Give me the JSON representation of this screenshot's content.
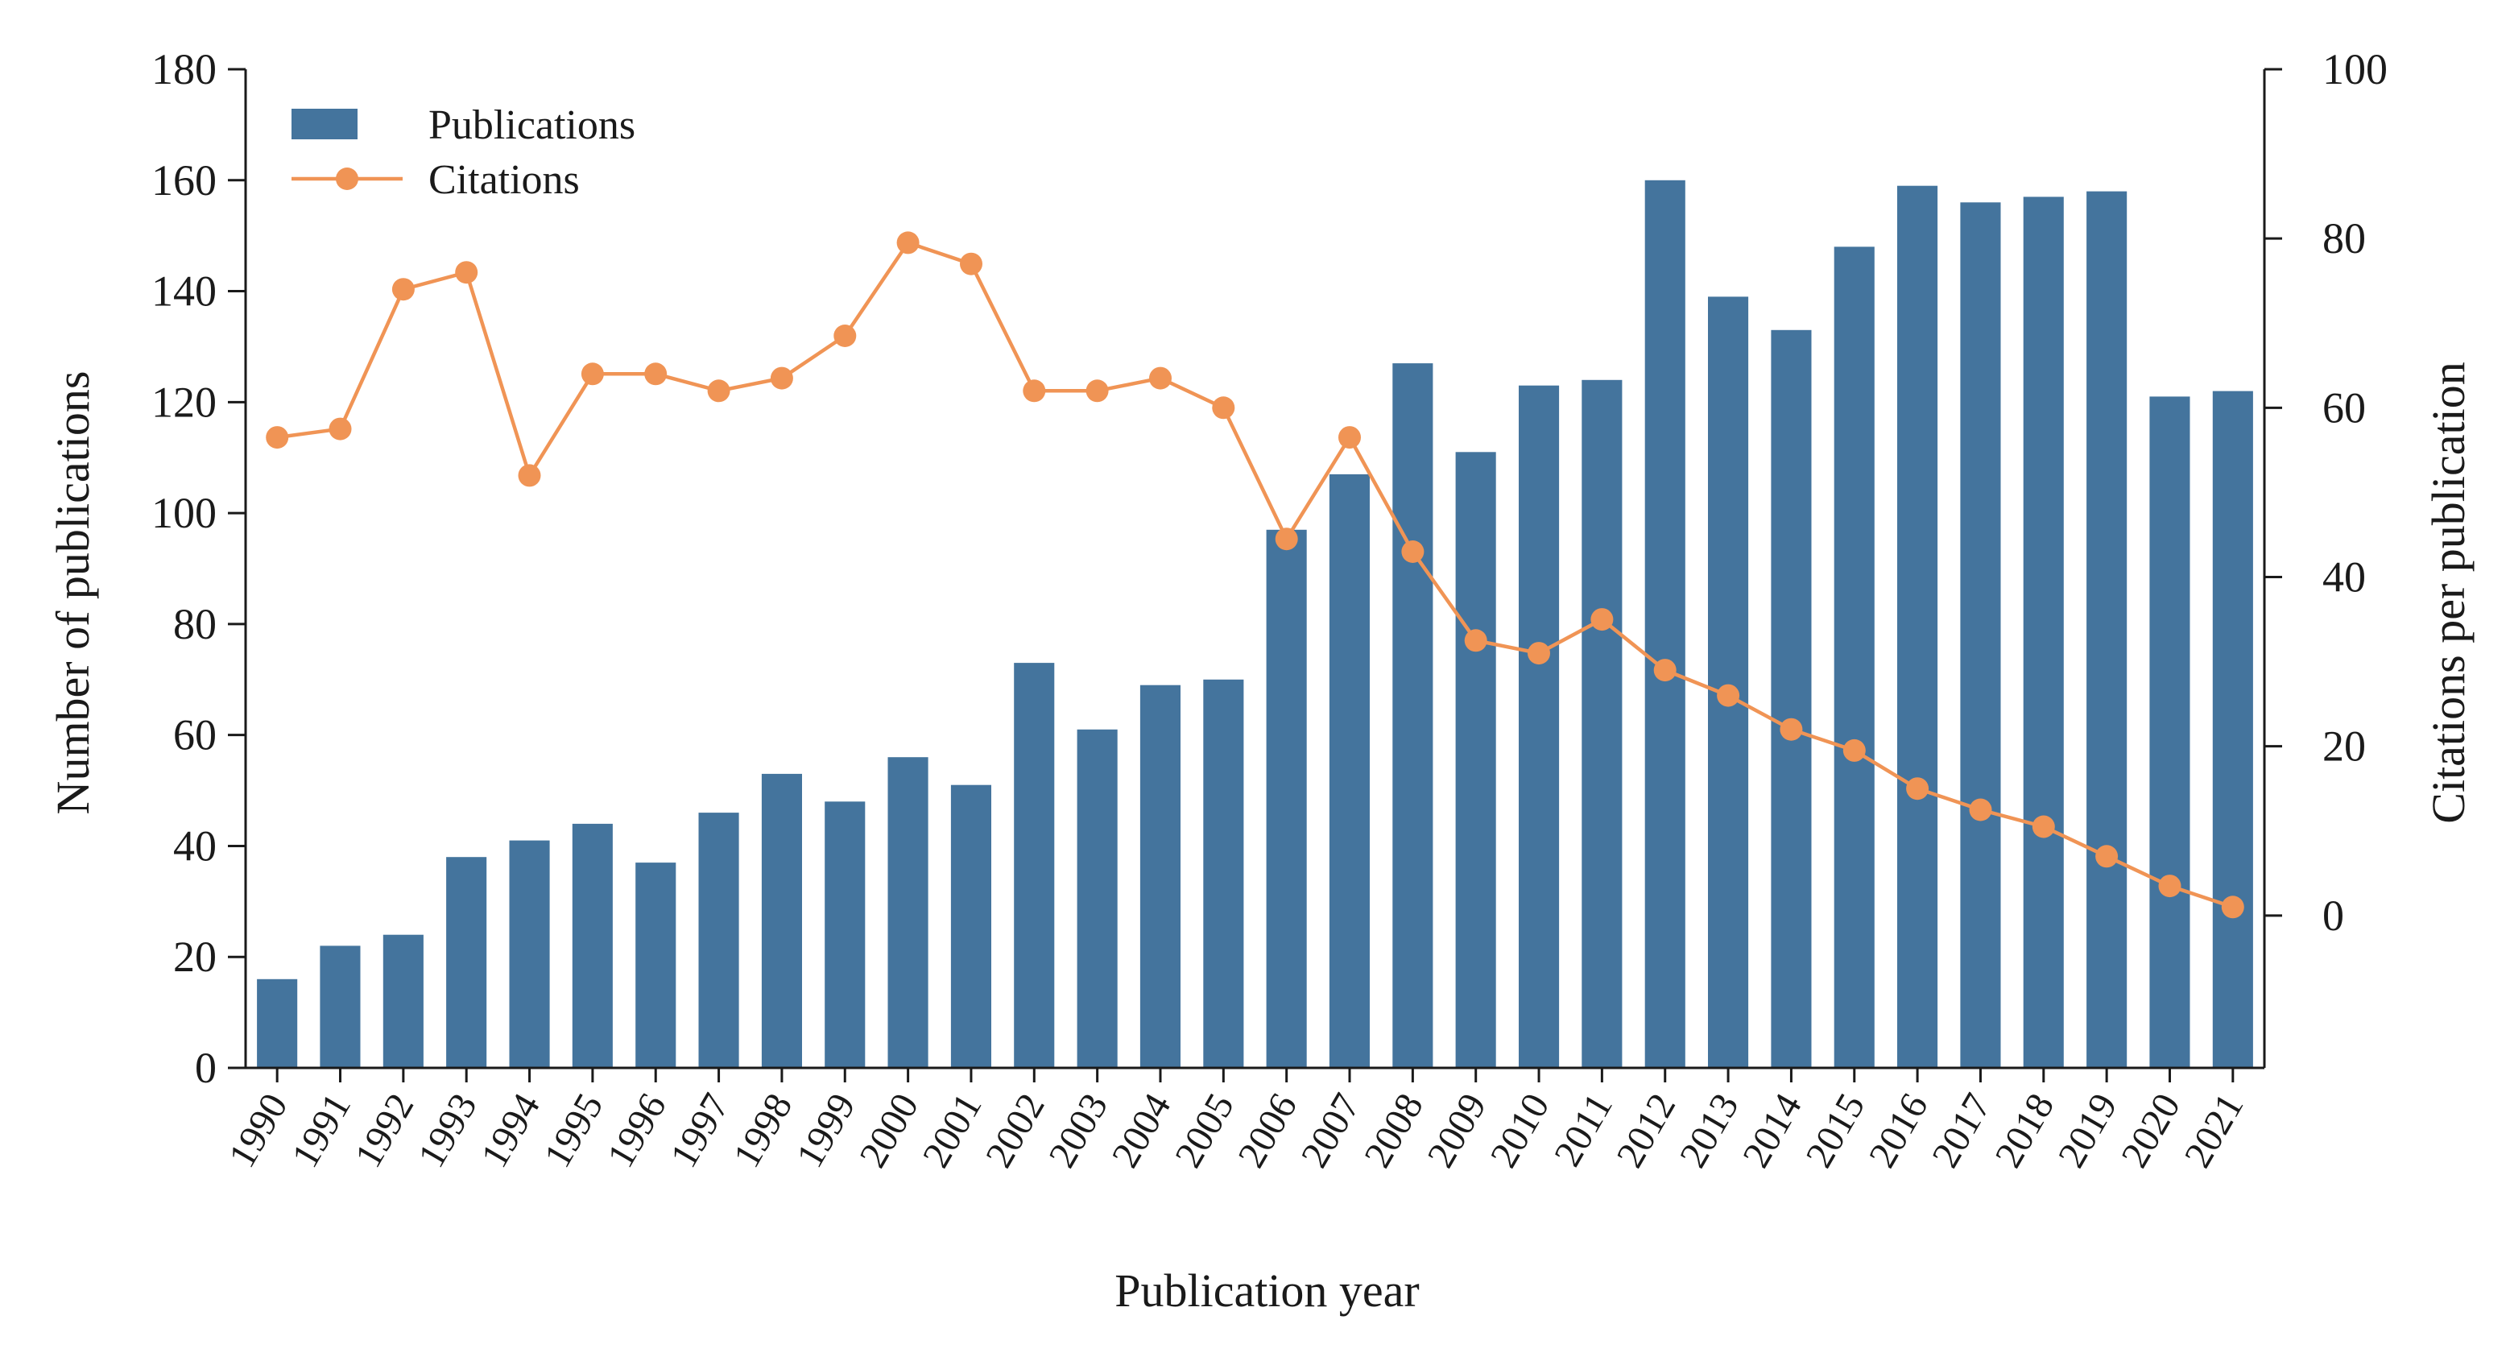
{
  "chart_data": {
    "type": "bar+line",
    "title": "",
    "xlabel": "Publication year",
    "ylabel_left": "Number of publications",
    "ylabel_right": "Citations per publication",
    "categories": [
      "1990",
      "1991",
      "1992",
      "1993",
      "1994",
      "1995",
      "1996",
      "1997",
      "1998",
      "1999",
      "2000",
      "2001",
      "2002",
      "2003",
      "2004",
      "2005",
      "2006",
      "2007",
      "2008",
      "2009",
      "2010",
      "2011",
      "2012",
      "2013",
      "2014",
      "2015",
      "2016",
      "2017",
      "2018",
      "2019",
      "2020",
      "2021"
    ],
    "series": [
      {
        "name": "Publications",
        "type": "bar",
        "axis": "left",
        "color": "#44749d",
        "values": [
          16,
          22,
          24,
          38,
          41,
          44,
          37,
          46,
          53,
          48,
          56,
          51,
          73,
          61,
          69,
          70,
          97,
          107,
          127,
          111,
          123,
          124,
          160,
          139,
          133,
          148,
          159,
          156,
          157,
          158,
          121,
          122
        ]
      },
      {
        "name": "Citations",
        "type": "line",
        "axis": "right",
        "color": "#f09455",
        "values": [
          56.5,
          57.5,
          74,
          76,
          52,
          64,
          64,
          62,
          63.5,
          68.5,
          79.5,
          77,
          62,
          62,
          63.5,
          60,
          44.5,
          56.5,
          43,
          32.5,
          31,
          35,
          29,
          26,
          22,
          19.5,
          15,
          12.5,
          10.5,
          7,
          3.5,
          1
        ]
      }
    ],
    "ylim_left": [
      0,
      180
    ],
    "yticks_left": [
      0,
      20,
      40,
      60,
      80,
      100,
      120,
      140,
      160,
      180
    ],
    "ylim_right": [
      -18,
      100
    ],
    "yticks_right": [
      0,
      20,
      40,
      60,
      80,
      100
    ],
    "legend": {
      "position": "top-left",
      "entries": [
        "Publications",
        "Citations"
      ]
    },
    "grid": false
  }
}
